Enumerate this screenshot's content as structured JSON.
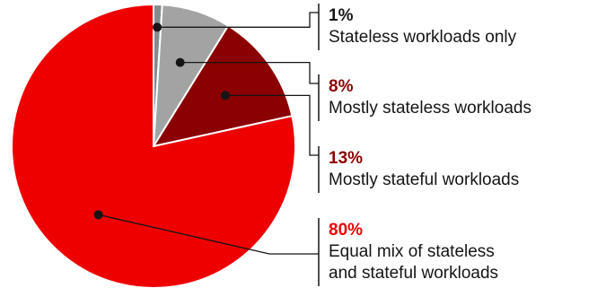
{
  "chart_data": {
    "type": "pie",
    "slices": [
      {
        "label_lines": [
          "Stateless workloads only"
        ],
        "value": 1,
        "value_label": "1%",
        "color": "#8a8a8a",
        "label_color": "#151515"
      },
      {
        "label_lines": [
          "Mostly stateless workloads"
        ],
        "value": 8,
        "value_label": "8%",
        "color": "#a3a3a3",
        "label_color": "#8b0000"
      },
      {
        "label_lines": [
          "Mostly stateful workloads"
        ],
        "value": 13,
        "value_label": "13%",
        "color": "#8b0000",
        "label_color": "#8b0000"
      },
      {
        "label_lines": [
          "Equal mix of stateless",
          "and stateful workloads"
        ],
        "value": 80,
        "value_label": "80%",
        "color": "#ee0000",
        "label_color": "#ee0000"
      }
    ],
    "start_angle": "top",
    "direction": "clockwise",
    "legend": "right"
  }
}
